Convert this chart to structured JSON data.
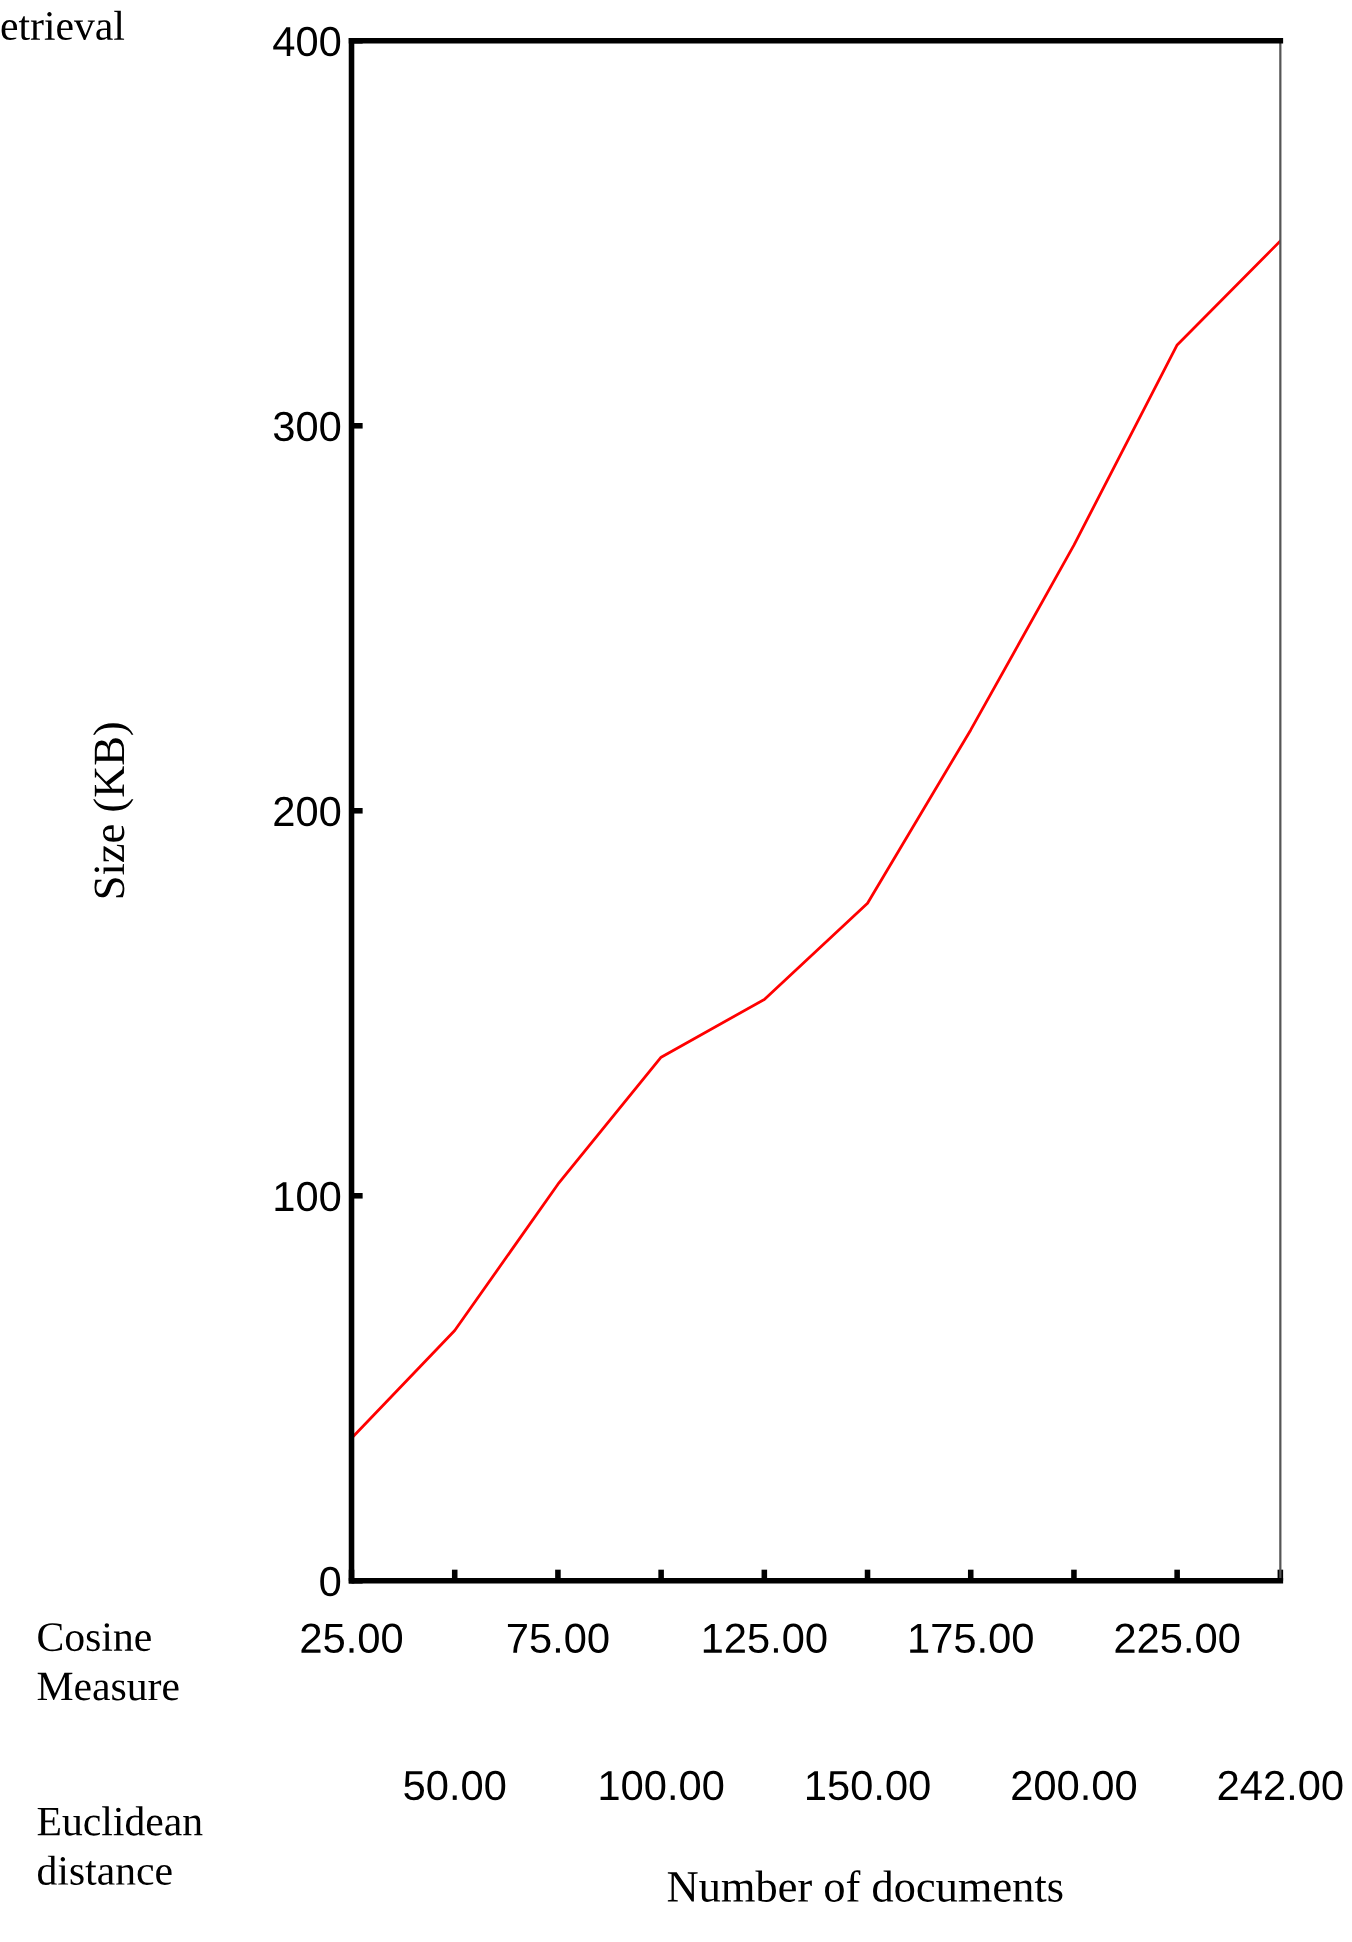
{
  "chart_data": {
    "type": "line",
    "categories": [
      "25.00",
      "50.00",
      "75.00",
      "100.00",
      "125.00",
      "150.00",
      "175.00",
      "200.00",
      "225.00",
      "242.00"
    ],
    "series": [
      {
        "color": "#ff0000",
        "values": [
          37,
          65,
          103,
          136,
          151,
          176,
          221,
          269,
          321,
          348
        ]
      }
    ],
    "xlabel": "Number of documents",
    "ylabel": "Size (KB)",
    "ylim": [
      0,
      400
    ],
    "yticks": [
      0,
      100,
      200,
      300,
      400
    ],
    "annotations": [
      "etrieval",
      "Cosine\nMeasure",
      "Euclidean\ndistance"
    ],
    "grid": false,
    "legend": false,
    "marker": "none",
    "line_style": "solid"
  }
}
